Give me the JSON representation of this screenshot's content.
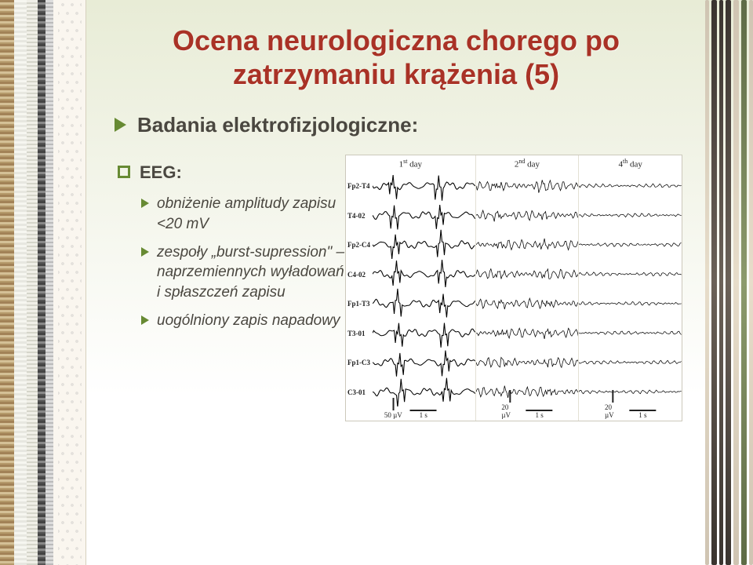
{
  "title_line1": "Ocena neurologiczna chorego po",
  "title_line2": "zatrzymaniu krążenia (5)",
  "title_color": "#a93226",
  "accent_color": "#678a33",
  "body_text_color": "#4a4740",
  "bullet1": "Badania elektrofizjologiczne:",
  "bullet2": "EEG:",
  "sub_bullets": [
    "obniżenie amplitudy zapisu <20 mV",
    "zespoły „burst-supression\" – naprzemiennych wyładowań i spłaszczeń zapisu",
    "uogólniony zapis napadowy"
  ],
  "eeg_figure": {
    "channel_labels": [
      "Fp2-T4",
      "T4-02",
      "Fp2-C4",
      "C4-02",
      "Fp1-T3",
      "T3-01",
      "Fp1-C3",
      "C3-01"
    ],
    "columns": [
      {
        "label_html": "1<sup>st</sup> day",
        "scale_uv": "50 µV",
        "scale_s": "1 s",
        "amplitude": 10,
        "freq": 1.4,
        "spike_amp": 16,
        "noise": 1.2
      },
      {
        "label_html": "2<sup>nd</sup> day",
        "scale_uv": "20 µV",
        "scale_s": "1 s",
        "amplitude": 6,
        "freq": 6.5,
        "spike_amp": 6,
        "noise": 2.5
      },
      {
        "label_html": "4<sup>th</sup> day",
        "scale_uv": "20 µV",
        "scale_s": "1 s",
        "amplitude": 2,
        "freq": 8.0,
        "spike_amp": 2,
        "noise": 1.0
      }
    ],
    "trace_color": "#000000",
    "background": "#ffffff",
    "border_color": "#ccc8bb"
  }
}
